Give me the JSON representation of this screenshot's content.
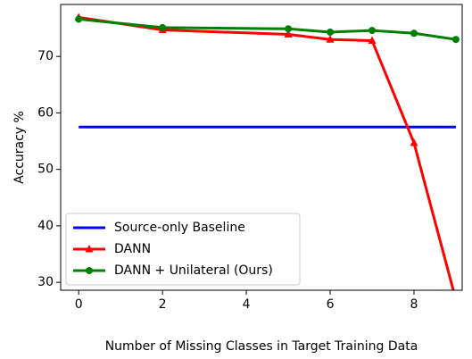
{
  "chart_data": {
    "type": "line",
    "xlabel": "Number of Missing Classes in Target Training Data",
    "ylabel": "Accuracy %",
    "x": [
      0,
      2,
      5,
      6,
      7,
      8,
      9
    ],
    "series": [
      {
        "name": "Source-only Baseline",
        "color": "#0000ff",
        "marker": "none",
        "values": [
          57.5,
          57.5,
          57.5,
          57.5,
          57.5,
          57.5,
          57.5
        ]
      },
      {
        "name": "DANN",
        "color": "#ff0000",
        "marker": "triangle",
        "values": [
          76.9,
          74.7,
          73.9,
          73.0,
          72.8,
          54.7,
          26.9
        ]
      },
      {
        "name": "DANN + Unilateral (Ours)",
        "color": "#008000",
        "marker": "circle",
        "values": [
          76.6,
          75.1,
          74.9,
          74.3,
          74.6,
          74.1,
          73.0
        ]
      }
    ],
    "xlim": [
      -0.43,
      9.15
    ],
    "xticks": [
      0,
      2,
      4,
      6,
      8
    ],
    "ylim": [
      28.6,
      79.2
    ],
    "yticks": [
      30,
      40,
      50,
      60,
      70
    ],
    "legend": "lower left"
  }
}
